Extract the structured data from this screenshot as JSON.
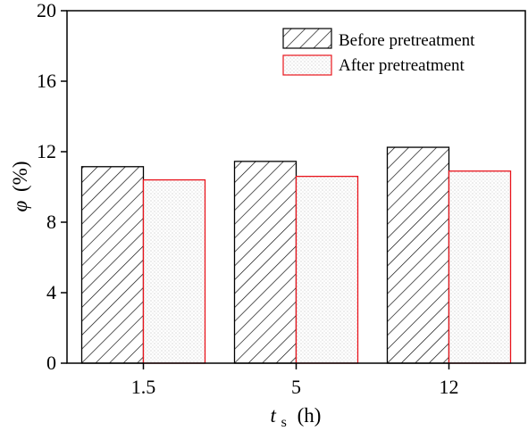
{
  "chart_data": {
    "type": "bar",
    "categories": [
      "1.5",
      "5",
      "12"
    ],
    "series": [
      {
        "name": "Before pretreatment",
        "values": [
          11.15,
          11.45,
          12.25
        ],
        "fill": "hatch",
        "stroke": "#000000"
      },
      {
        "name": "After pretreatment",
        "values": [
          10.4,
          10.6,
          10.9
        ],
        "fill": "dots",
        "stroke": "#e8141c"
      }
    ],
    "ylim": [
      0,
      20
    ],
    "yticks": [
      "0",
      "4",
      "8",
      "12",
      "16",
      "20"
    ],
    "ylabel": {
      "symbol": "φ",
      "unit": "(%)"
    },
    "xlabel": {
      "symbol": "t",
      "subscript": "s",
      "unit": "(h)"
    },
    "legend_position": "top-right",
    "grid": false,
    "colors": {
      "axis": "#000000",
      "before": "#000000",
      "after": "#e8141c",
      "dots": "#d8d8d8"
    }
  }
}
